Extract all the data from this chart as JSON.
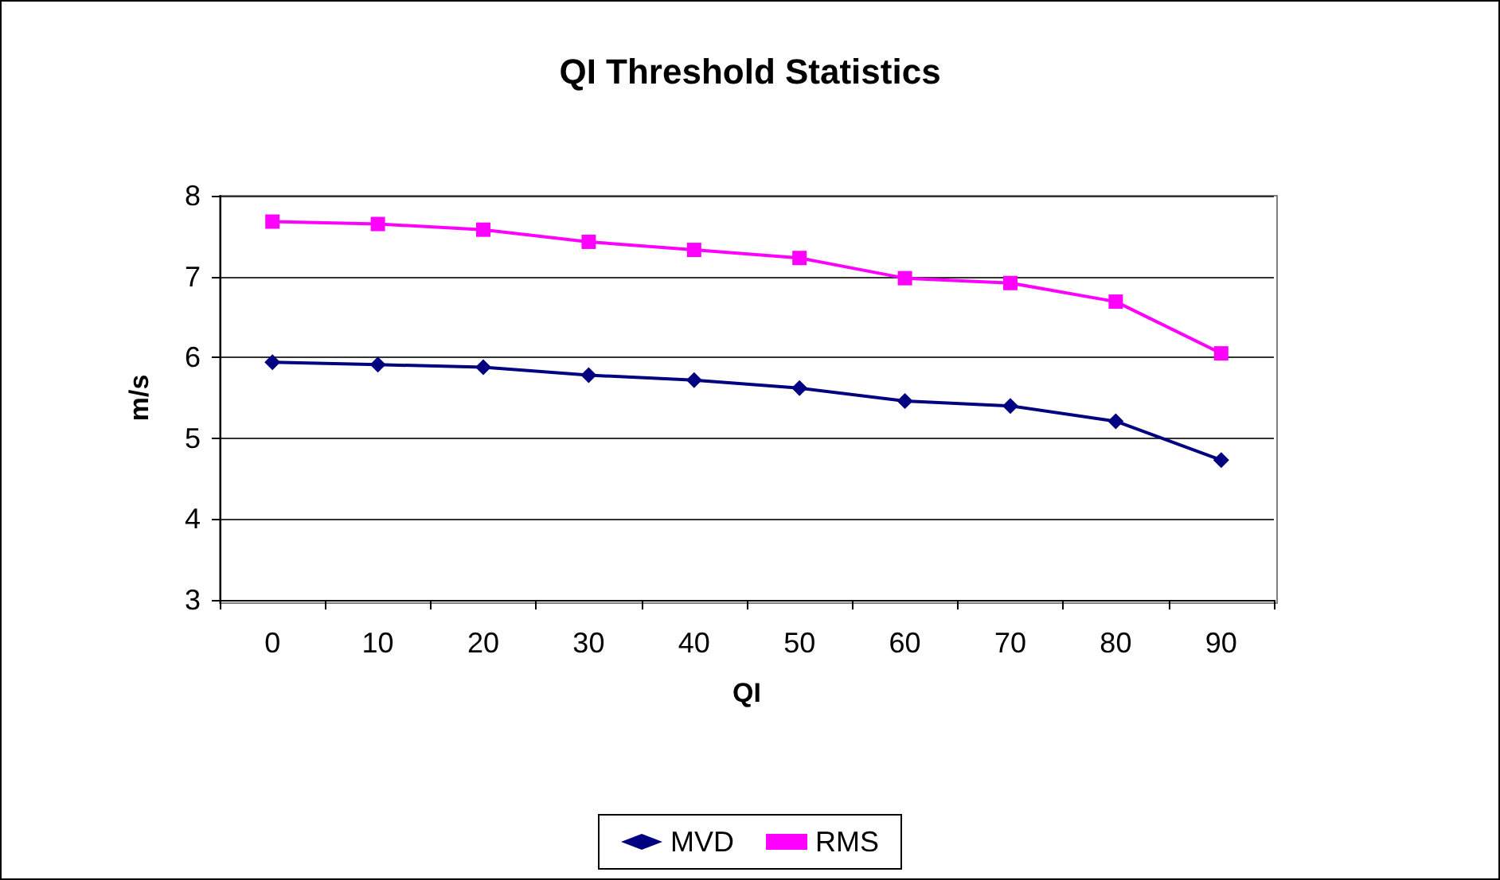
{
  "chart_data": {
    "type": "line",
    "title": "QI Threshold Statistics",
    "xlabel": "QI",
    "ylabel": "m/s",
    "categories": [
      "0",
      "10",
      "20",
      "30",
      "40",
      "50",
      "60",
      "70",
      "80",
      "90"
    ],
    "series": [
      {
        "name": "MVD",
        "color": "#000080",
        "marker": "diamond",
        "values": [
          5.94,
          5.91,
          5.88,
          5.78,
          5.72,
          5.62,
          5.46,
          5.4,
          5.21,
          4.73
        ]
      },
      {
        "name": "RMS",
        "color": "#ff00ff",
        "marker": "square",
        "values": [
          7.68,
          7.65,
          7.58,
          7.43,
          7.33,
          7.23,
          6.98,
          6.92,
          6.69,
          6.05
        ]
      }
    ],
    "ylim": [
      3,
      8
    ],
    "yticks": [
      3,
      4,
      5,
      6,
      7,
      8
    ],
    "grid": "y",
    "legend": "bottom",
    "line_style": "solid"
  }
}
